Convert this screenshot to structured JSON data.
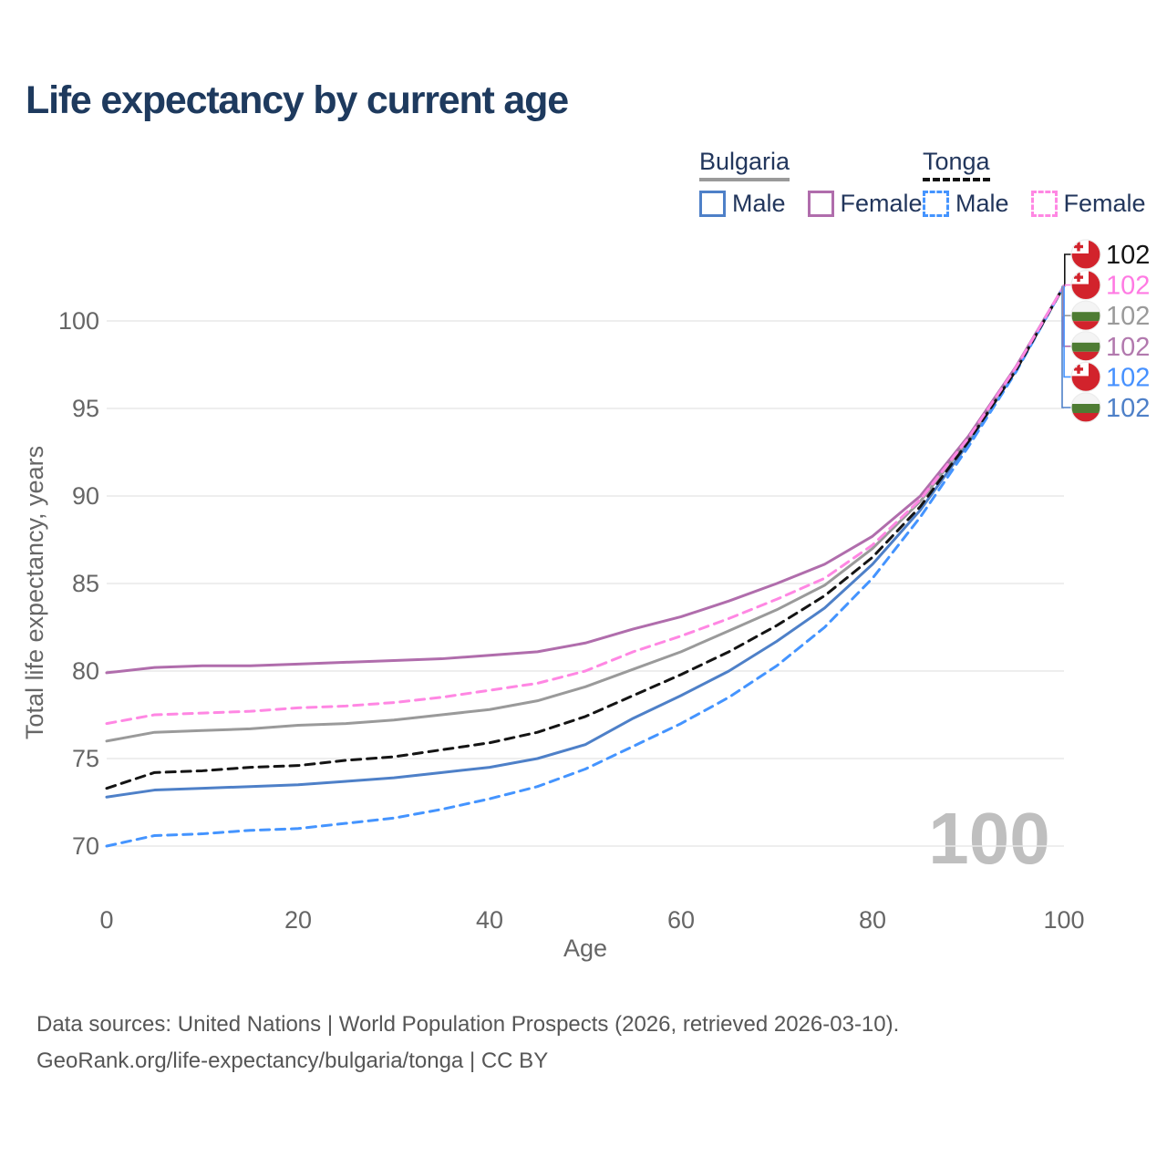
{
  "title": "Life expectancy by current age",
  "legend": {
    "groups": [
      {
        "label": "Bulgaria",
        "line_style": "solid",
        "underline_color": "#9a9a9a",
        "items": [
          {
            "label": "Male",
            "color": "#4e80c8"
          },
          {
            "label": "Female",
            "color": "#b06dac"
          }
        ]
      },
      {
        "label": "Tonga",
        "line_style": "dashed",
        "underline_color": "#141414",
        "items": [
          {
            "label": "Male",
            "color": "#4494ff"
          },
          {
            "label": "Female",
            "color": "#ff87e3"
          }
        ]
      }
    ]
  },
  "watermark": "100",
  "footer": {
    "line1": "Data sources: United Nations | World Population Prospects (2026, retrieved 2026-03-10).",
    "line2": "GeoRank.org/life-expectancy/bulgaria/tonga | CC BY"
  },
  "flags": {
    "tonga": {
      "red": "#d2232c",
      "white": "#ffffff"
    },
    "bulgaria": {
      "white": "#f4f4f4",
      "green": "#4e7c33",
      "red": "#d2232c"
    }
  },
  "chart_data": {
    "type": "line",
    "title": "Life expectancy by current age",
    "xlabel": "Age",
    "ylabel": "Total life expectancy, years",
    "xlim": [
      0,
      100
    ],
    "ylim": [
      68.5,
      103
    ],
    "xticks": [
      0,
      20,
      40,
      60,
      80,
      100
    ],
    "yticks": [
      70,
      75,
      80,
      85,
      90,
      95,
      100
    ],
    "grid": "horizontal-only",
    "legend_position": "top-right",
    "x": [
      0,
      5,
      10,
      15,
      20,
      25,
      30,
      35,
      40,
      45,
      50,
      55,
      60,
      65,
      70,
      75,
      80,
      85,
      90,
      95,
      100
    ],
    "series": [
      {
        "name": "Bulgaria Male",
        "country": "bulgaria",
        "sex": "male",
        "color": "#4e80c8",
        "dash": false,
        "values": [
          72.8,
          73.2,
          73.3,
          73.4,
          73.5,
          73.7,
          73.9,
          74.2,
          74.5,
          75.0,
          75.8,
          77.3,
          78.6,
          80.0,
          81.7,
          83.6,
          86.1,
          89.2,
          93.0,
          97.2,
          102
        ],
        "end_label": "102",
        "end_slot": 5
      },
      {
        "name": "Bulgaria",
        "country": "bulgaria",
        "sex": "total",
        "color": "#9a9a9a",
        "dash": false,
        "values": [
          76.0,
          76.5,
          76.6,
          76.7,
          76.9,
          77.0,
          77.2,
          77.5,
          77.8,
          78.3,
          79.1,
          80.1,
          81.1,
          82.3,
          83.5,
          84.9,
          87.0,
          89.7,
          93.2,
          97.3,
          102
        ],
        "end_label": "102",
        "end_slot": 2
      },
      {
        "name": "Bulgaria Female",
        "country": "bulgaria",
        "sex": "female",
        "color": "#b06dac",
        "dash": false,
        "values": [
          79.9,
          80.2,
          80.3,
          80.3,
          80.4,
          80.5,
          80.6,
          80.7,
          80.9,
          81.1,
          81.6,
          82.4,
          83.1,
          84.0,
          85.0,
          86.1,
          87.7,
          90.0,
          93.4,
          97.4,
          102
        ],
        "end_label": "102",
        "end_slot": 3
      },
      {
        "name": "Tonga Male",
        "country": "tonga",
        "sex": "male",
        "color": "#4494ff",
        "dash": true,
        "values": [
          70.0,
          70.6,
          70.7,
          70.9,
          71.0,
          71.3,
          71.6,
          72.1,
          72.7,
          73.4,
          74.4,
          75.7,
          77.0,
          78.5,
          80.3,
          82.5,
          85.3,
          88.8,
          92.8,
          97.1,
          102
        ],
        "end_label": "102",
        "end_slot": 4
      },
      {
        "name": "Tonga",
        "country": "tonga",
        "sex": "total",
        "color": "#141414",
        "dash": true,
        "values": [
          73.3,
          74.2,
          74.3,
          74.5,
          74.6,
          74.9,
          75.1,
          75.5,
          75.9,
          76.5,
          77.4,
          78.6,
          79.8,
          81.1,
          82.6,
          84.3,
          86.5,
          89.4,
          93.1,
          97.2,
          102
        ],
        "end_label": "102",
        "end_slot": 0
      },
      {
        "name": "Tonga Female",
        "country": "tonga",
        "sex": "female",
        "color": "#ff87e3",
        "dash": true,
        "values": [
          77.0,
          77.5,
          77.6,
          77.7,
          77.9,
          78.0,
          78.2,
          78.5,
          78.9,
          79.3,
          80.0,
          81.1,
          82.0,
          83.0,
          84.1,
          85.3,
          87.2,
          89.8,
          93.3,
          97.35,
          102
        ],
        "end_label": "102",
        "end_slot": 1
      }
    ],
    "end_labels": [
      {
        "text": "102",
        "series": "Tonga",
        "color": "#141414",
        "flag": "tonga"
      },
      {
        "text": "102",
        "series": "Tonga Female",
        "color": "#ff7ae3",
        "flag": "tonga"
      },
      {
        "text": "102",
        "series": "Bulgaria",
        "color": "#9a9a9a",
        "flag": "bulgaria"
      },
      {
        "text": "102",
        "series": "Bulgaria Female",
        "color": "#b279ae",
        "flag": "bulgaria"
      },
      {
        "text": "102",
        "series": "Tonga Male",
        "color": "#4691ff",
        "flag": "tonga"
      },
      {
        "text": "102",
        "series": "Bulgaria Male",
        "color": "#4e80c8",
        "flag": "bulgaria"
      }
    ]
  }
}
